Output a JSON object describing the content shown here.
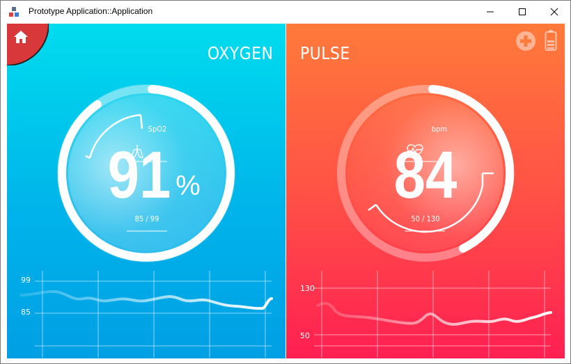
{
  "window": {
    "title": "Prototype Application::Application"
  },
  "oxygen": {
    "title": "OXYGEN",
    "label": "SpO2",
    "value": "91",
    "unit": "%",
    "range": "85 / 99",
    "ticks": [
      "99",
      "85"
    ]
  },
  "pulse": {
    "title": "PULSE",
    "label": "bpm",
    "value": "84",
    "range": "50 / 130",
    "ticks": [
      "130",
      "50"
    ]
  },
  "colors": {
    "oxygen_top": "#00dcee",
    "oxygen_bottom": "#009fe4",
    "pulse_top": "#ff7a3a",
    "pulse_bottom": "#ff1f52",
    "home_button": "#d8383a"
  }
}
